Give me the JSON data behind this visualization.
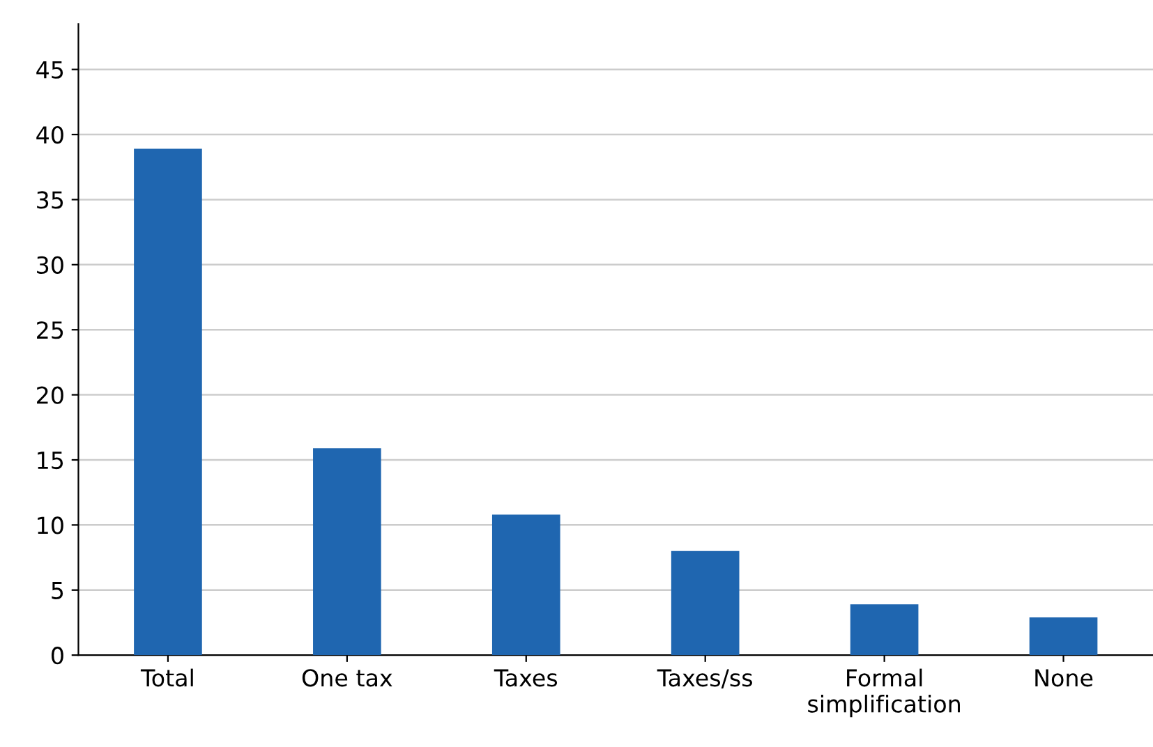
{
  "chart_data": {
    "type": "bar",
    "categories": [
      "Total",
      "One tax",
      "Taxes",
      "Taxes/ss",
      "Formal\nsimplification",
      "None"
    ],
    "values": [
      38.9,
      15.9,
      10.8,
      8.0,
      3.9,
      2.9
    ],
    "color": "#1f66b0",
    "ylim": [
      0,
      48.5
    ],
    "yticks": [
      0,
      5,
      10,
      15,
      20,
      25,
      30,
      35,
      40,
      45
    ],
    "grid": "y"
  }
}
